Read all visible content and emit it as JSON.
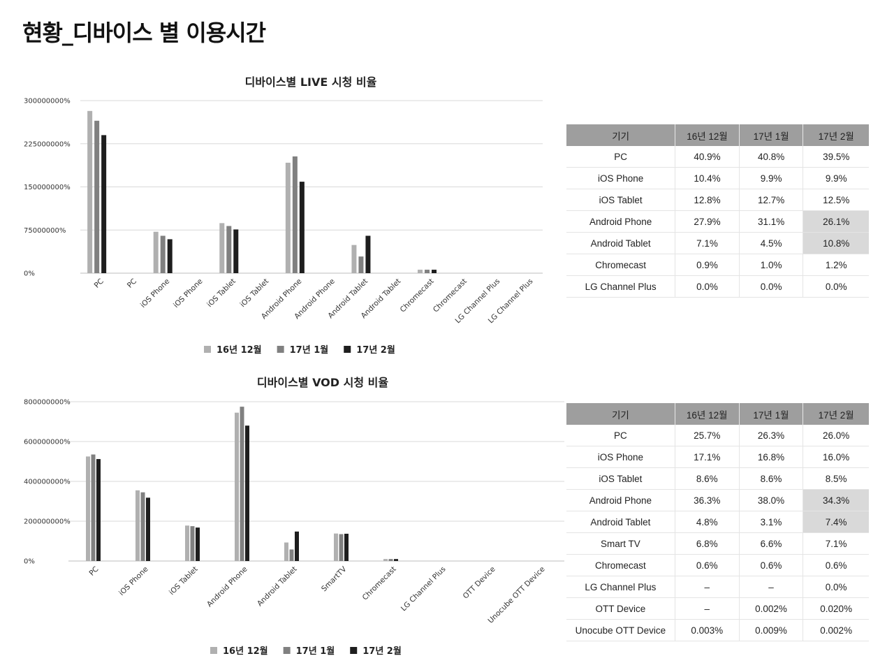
{
  "page": {
    "title": "현황_디바이스 별 이용시간"
  },
  "colors": {
    "s1": "#b0b0b0",
    "s2": "#808080",
    "s3": "#1e1e1e",
    "grid": "#d8d8d8",
    "header": "#9e9e9e",
    "highlight": "#d9d9d9"
  },
  "chart_data": [
    {
      "type": "bar",
      "title": "디바이스별 LIVE 시청 비율",
      "categories": [
        "PC",
        "PC",
        "iOS Phone",
        "iOS Phone",
        "iOS Tablet",
        "iOS Tablet",
        "Android Phone",
        "Android Phone",
        "Android Tablet",
        "Android Tablet",
        "Chromecast",
        "Chromecast",
        "LG Channel Plus",
        "LG Channel Plus"
      ],
      "series": [
        {
          "name": "16년 12월",
          "values": [
            282000000,
            null,
            72000000,
            null,
            87000000,
            null,
            192000000,
            null,
            49000000,
            null,
            6000000,
            null,
            0,
            null
          ]
        },
        {
          "name": "17년 1월",
          "values": [
            265000000,
            null,
            65000000,
            null,
            82000000,
            null,
            203000000,
            null,
            29000000,
            null,
            6000000,
            null,
            0,
            null
          ]
        },
        {
          "name": "17년 2월",
          "values": [
            240000000,
            null,
            59000000,
            null,
            76000000,
            null,
            159000000,
            null,
            65000000,
            null,
            6000000,
            null,
            0,
            null
          ]
        }
      ],
      "yticks": [
        "0%",
        "75000000%",
        "150000000%",
        "225000000%",
        "300000000%"
      ],
      "ylim": [
        0,
        300000000
      ],
      "grid": true,
      "legend": "bottom"
    },
    {
      "type": "bar",
      "title": "디바이스별 VOD 시청 비율",
      "categories": [
        "PC",
        "iOS Phone",
        "iOS Tablet",
        "Android Phone",
        "Android Tablet",
        "SmartTV",
        "Chromecast",
        "LG Channel Plus",
        "OTT Device",
        "Unocube OTT Device"
      ],
      "series": [
        {
          "name": "16년 12월",
          "values": [
            525000000,
            355000000,
            178000000,
            745000000,
            93000000,
            138000000,
            10000000,
            0,
            0,
            0
          ]
        },
        {
          "name": "17년 1월",
          "values": [
            535000000,
            345000000,
            175000000,
            775000000,
            58000000,
            135000000,
            10000000,
            0,
            0,
            0
          ]
        },
        {
          "name": "17년 2월",
          "values": [
            512000000,
            318000000,
            168000000,
            680000000,
            148000000,
            137000000,
            10000000,
            0,
            0,
            0
          ]
        }
      ],
      "yticks": [
        "0%",
        "200000000%",
        "400000000%",
        "600000000%",
        "800000000%"
      ],
      "ylim": [
        0,
        800000000
      ],
      "grid": true,
      "legend": "bottom"
    }
  ],
  "live_table": {
    "headers": [
      "기기",
      "16년 12월",
      "17년 1월",
      "17년 2월"
    ],
    "rows": [
      [
        "PC",
        "40.9%",
        "40.8%",
        "39.5%"
      ],
      [
        "iOS Phone",
        "10.4%",
        "9.9%",
        "9.9%"
      ],
      [
        "iOS Tablet",
        "12.8%",
        "12.7%",
        "12.5%"
      ],
      [
        "Android Phone",
        "27.9%",
        "31.1%",
        "26.1%"
      ],
      [
        "Android Tablet",
        "7.1%",
        "4.5%",
        "10.8%"
      ],
      [
        "Chromecast",
        "0.9%",
        "1.0%",
        "1.2%"
      ],
      [
        "LG Channel Plus",
        "0.0%",
        "0.0%",
        "0.0%"
      ]
    ],
    "highlight_rows": [
      3,
      4
    ]
  },
  "vod_table": {
    "headers": [
      "기기",
      "16년 12월",
      "17년 1월",
      "17년 2월"
    ],
    "rows": [
      [
        "PC",
        "25.7%",
        "26.3%",
        "26.0%"
      ],
      [
        "iOS Phone",
        "17.1%",
        "16.8%",
        "16.0%"
      ],
      [
        "iOS Tablet",
        "8.6%",
        "8.6%",
        "8.5%"
      ],
      [
        "Android Phone",
        "36.3%",
        "38.0%",
        "34.3%"
      ],
      [
        "Android Tablet",
        "4.8%",
        "3.1%",
        "7.4%"
      ],
      [
        "Smart TV",
        "6.8%",
        "6.6%",
        "7.1%"
      ],
      [
        "Chromecast",
        "0.6%",
        "0.6%",
        "0.6%"
      ],
      [
        "LG Channel Plus",
        "–",
        "–",
        "0.0%"
      ],
      [
        "OTT Device",
        "–",
        "0.002%",
        "0.020%"
      ],
      [
        "Unocube OTT Device",
        "0.003%",
        "0.009%",
        "0.002%"
      ]
    ],
    "highlight_rows": [
      3,
      4
    ]
  }
}
